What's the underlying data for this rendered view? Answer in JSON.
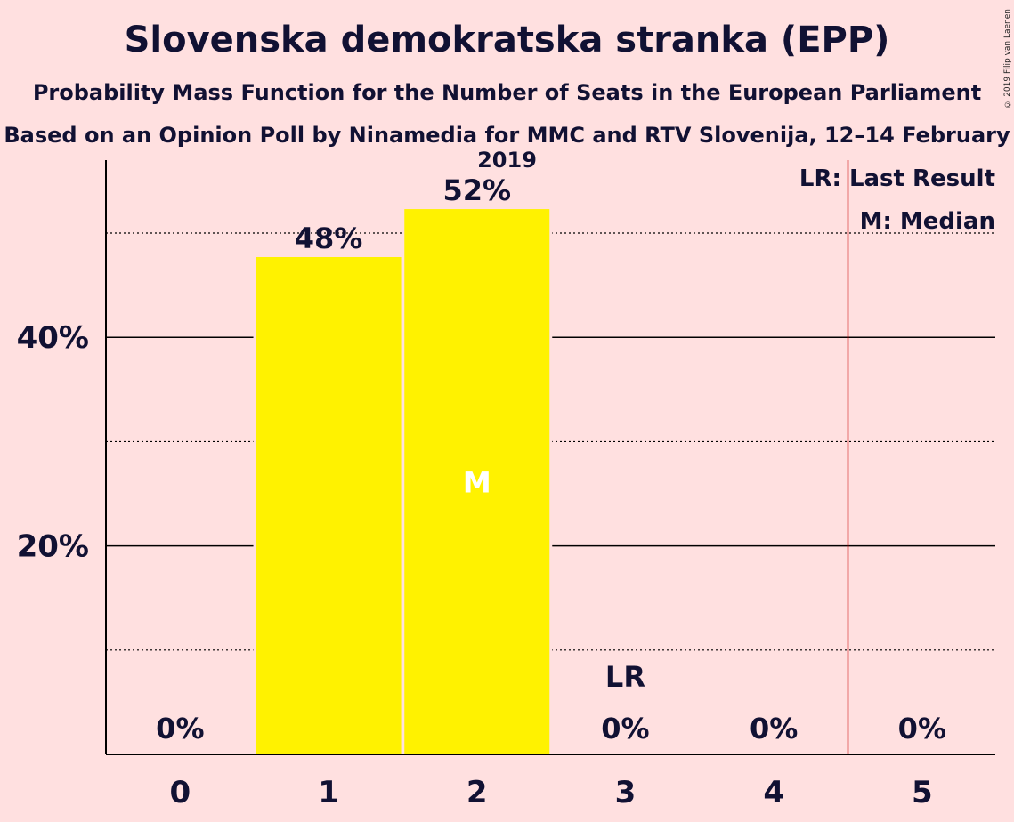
{
  "title": "Slovenska demokratska stranka (EPP)",
  "subtitle": "Probability Mass Function for the Number of Seats in the European Parliament",
  "source": "Based on an Opinion Poll by Ninamedia for MMC and RTV Slovenija, 12–14 February 2019",
  "copyright": "© 2019 Filip van Laenen",
  "legend": {
    "last_result": "LR: Last Result",
    "median": "M: Median"
  },
  "colors": {
    "background": "#FFE0E0",
    "bar": "#FFF200",
    "last_result_line": "#CC0000",
    "text": "#111133"
  },
  "chart_data": {
    "type": "bar",
    "categories": [
      "0",
      "1",
      "2",
      "3",
      "4",
      "5"
    ],
    "values": [
      0,
      47.7,
      52.3,
      0,
      0,
      0
    ],
    "value_labels": [
      "0%",
      "48%",
      "52%",
      "0%",
      "0%",
      "0%"
    ],
    "ylim": [
      0,
      57
    ],
    "y_ticks": [
      {
        "value": 20,
        "label": "20%"
      },
      {
        "value": 40,
        "label": "40%"
      }
    ],
    "minor_gridlines": [
      10,
      30,
      50
    ],
    "median_category": "2",
    "median_marker": "M",
    "last_result_category": "3",
    "last_result_marker": "LR",
    "last_result_line_x": 4.5
  }
}
